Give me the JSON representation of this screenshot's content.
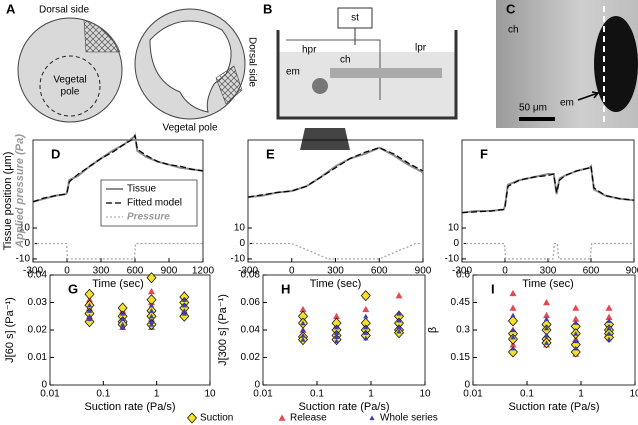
{
  "figure_panels": [
    {
      "label": "A",
      "texts": [
        "Dorsal side",
        "Vegetal",
        "pole",
        "Vegetal pole",
        "Dorsal side"
      ]
    },
    {
      "label": "B",
      "texts": [
        "st",
        "hpr",
        "lpr",
        "em",
        "ch"
      ]
    },
    {
      "label": "C",
      "texts": [
        "ch",
        "em",
        "50 μm"
      ]
    }
  ],
  "chart_data": [
    {
      "type": "line",
      "panel": "D",
      "ylabel": "Tissue position (μm)",
      "pressure_label": "Applied pressure (Pa)",
      "xlabel": "Time (sec)",
      "xlim": [
        -300,
        1200
      ],
      "xticks": [
        -300,
        0,
        300,
        600,
        900,
        1200
      ],
      "ylim": [
        -12,
        67
      ],
      "yticks": [
        -10,
        0,
        10
      ],
      "series": [
        {
          "name": "Tissue",
          "color": "#8c8c8c",
          "dash": "solid",
          "x": [
            -300,
            -200,
            -100,
            -10,
            0,
            20,
            100,
            200,
            300,
            400,
            500,
            590,
            600,
            620,
            700,
            800,
            900,
            1000,
            1100,
            1200
          ],
          "values": [
            27,
            29,
            31,
            32,
            33,
            41,
            44,
            50,
            55,
            60,
            64,
            69,
            70,
            60,
            56,
            53,
            51,
            49,
            48,
            47
          ]
        },
        {
          "name": "Fitted model",
          "color": "#000000",
          "dash": "dashed",
          "x": [
            -300,
            -200,
            -100,
            -10,
            0,
            20,
            100,
            200,
            300,
            400,
            500,
            590,
            600,
            620,
            700,
            800,
            900,
            1000,
            1100,
            1200
          ],
          "values": [
            27,
            29.5,
            31,
            32,
            33,
            40,
            45,
            50,
            55,
            59,
            64,
            68,
            70,
            61,
            57,
            53,
            51,
            50,
            48,
            47
          ]
        },
        {
          "name": "Pressure",
          "color": "#aaaaaa",
          "dash": "dotted",
          "x": [
            -300,
            -5,
            5,
            595,
            605,
            1200
          ],
          "values": [
            0,
            0,
            -10,
            -10,
            0,
            0
          ]
        }
      ]
    },
    {
      "type": "line",
      "panel": "E",
      "xlabel": "Time (sec)",
      "xlim": [
        -300,
        900
      ],
      "xticks": [
        -300,
        0,
        300,
        600,
        900
      ],
      "ylim": [
        -12,
        67
      ],
      "yticks": [
        -10,
        0,
        10
      ],
      "series": [
        {
          "color": "#8c8c8c",
          "dash": "solid",
          "x": [
            -300,
            -200,
            -100,
            0,
            100,
            200,
            300,
            400,
            500,
            600,
            700,
            800,
            900
          ],
          "values": [
            30,
            31,
            33,
            34,
            37,
            43,
            50,
            55,
            58,
            62,
            57,
            51,
            46
          ]
        },
        {
          "color": "#000000",
          "dash": "dashed",
          "x": [
            -300,
            -200,
            -100,
            0,
            100,
            200,
            300,
            400,
            500,
            600,
            700,
            800,
            900
          ],
          "values": [
            30,
            31.5,
            33,
            34,
            37,
            43,
            49,
            55,
            59,
            62,
            58,
            52,
            47
          ]
        },
        {
          "color": "#aaaaaa",
          "dash": "dotted",
          "x": [
            -300,
            0,
            250,
            600,
            850,
            900
          ],
          "values": [
            0,
            0,
            -10,
            -10,
            0,
            0
          ]
        }
      ]
    },
    {
      "type": "line",
      "panel": "F",
      "xlabel": "Time (sec)",
      "xlim": [
        -300,
        900
      ],
      "xticks": [
        -300,
        0,
        300,
        600,
        900
      ],
      "ylim": [
        -12,
        67
      ],
      "yticks": [
        -10,
        0,
        10
      ],
      "series": [
        {
          "color": "#8c8c8c",
          "dash": "solid",
          "x": [
            -300,
            -200,
            -100,
            -10,
            0,
            20,
            100,
            200,
            300,
            340,
            360,
            380,
            420,
            500,
            590,
            600,
            620,
            700,
            800,
            900
          ],
          "values": [
            20,
            21,
            21,
            22,
            24,
            38,
            41,
            43,
            45,
            45,
            32,
            42,
            44,
            47,
            49,
            50,
            35,
            31,
            29,
            28
          ]
        },
        {
          "color": "#000000",
          "dash": "dashed",
          "x": [
            -300,
            -200,
            -100,
            -10,
            0,
            20,
            100,
            200,
            300,
            340,
            360,
            380,
            420,
            500,
            590,
            600,
            620,
            700,
            800,
            900
          ],
          "values": [
            20,
            20.5,
            21,
            22,
            24,
            37,
            41,
            43,
            44,
            45,
            33,
            41,
            44,
            47,
            49,
            50,
            36,
            31,
            29,
            28
          ]
        },
        {
          "color": "#aaaaaa",
          "dash": "dotted",
          "x": [
            -300,
            -5,
            5,
            335,
            345,
            365,
            375,
            595,
            605,
            900
          ],
          "values": [
            0,
            0,
            -10,
            -10,
            0,
            0,
            -10,
            -10,
            0,
            0
          ]
        }
      ]
    },
    {
      "type": "scatter",
      "panel": "G",
      "ylabel": "J[60 s] (Pa⁻¹)",
      "xlabel": "Suction rate (Pa/s)",
      "xscale": "log",
      "xlim": [
        0.01,
        10
      ],
      "xticks": [
        0.01,
        0.1,
        1,
        10
      ],
      "ylim": [
        0,
        0.04
      ],
      "yticks": [
        0,
        0.01,
        0.02,
        0.03,
        0.04
      ],
      "series": [
        {
          "name": "Suction",
          "color": "#f5e02a",
          "marker": "diamond",
          "x": [
            0.055,
            0.055,
            0.055,
            0.055,
            0.23,
            0.23,
            0.23,
            0.23,
            0.8,
            0.8,
            0.8,
            0.8,
            0.8,
            3.3,
            3.3,
            3.3,
            3.3
          ],
          "values": [
            0.033,
            0.029,
            0.026,
            0.023,
            0.028,
            0.025,
            0.023,
            0.022,
            0.039,
            0.031,
            0.027,
            0.025,
            0.022,
            0.032,
            0.03,
            0.028,
            0.025
          ]
        },
        {
          "name": "Release",
          "color": "#e8474f",
          "marker": "triangle",
          "x": [
            0.055,
            0.055,
            0.055,
            0.055,
            0.055,
            0.23,
            0.23,
            0.23,
            0.23,
            0.23,
            0.8,
            0.8,
            0.8,
            0.8,
            0.8,
            0.8,
            3.3,
            3.3,
            3.3,
            3.3
          ],
          "values": [
            0.031,
            0.028,
            0.027,
            0.025,
            0.024,
            0.027,
            0.026,
            0.024,
            0.023,
            0.021,
            0.034,
            0.03,
            0.028,
            0.026,
            0.024,
            0.021,
            0.033,
            0.031,
            0.029,
            0.027
          ]
        },
        {
          "name": "Whole series",
          "color": "#3b3fb4",
          "marker": "small-triangle",
          "x": [
            0.055,
            0.055,
            0.055,
            0.055,
            0.23,
            0.23,
            0.23,
            0.23,
            0.8,
            0.8,
            0.8,
            0.8,
            0.8,
            3.3,
            3.3,
            3.3,
            3.3
          ],
          "values": [
            0.029,
            0.027,
            0.025,
            0.024,
            0.026,
            0.024,
            0.022,
            0.021,
            0.029,
            0.027,
            0.025,
            0.023,
            0.022,
            0.031,
            0.029,
            0.027,
            0.026
          ]
        }
      ]
    },
    {
      "type": "scatter",
      "panel": "H",
      "ylabel": "J[300 s] (Pa⁻¹)",
      "xlabel": "Suction rate (Pa/s)",
      "xscale": "log",
      "xlim": [
        0.01,
        10
      ],
      "xticks": [
        0.01,
        0.1,
        1,
        10
      ],
      "ylim": [
        0,
        0.08
      ],
      "yticks": [
        0,
        0.02,
        0.04,
        0.06,
        0.08
      ],
      "series": [
        {
          "color": "#f5e02a",
          "marker": "diamond",
          "x": [
            0.055,
            0.055,
            0.055,
            0.055,
            0.23,
            0.23,
            0.23,
            0.23,
            0.8,
            0.8,
            0.8,
            0.8,
            3.3,
            3.3,
            3.3,
            3.3
          ],
          "values": [
            0.05,
            0.045,
            0.035,
            0.033,
            0.045,
            0.04,
            0.036,
            0.033,
            0.065,
            0.045,
            0.04,
            0.036,
            0.05,
            0.045,
            0.04,
            0.038
          ]
        },
        {
          "color": "#e8474f",
          "marker": "triangle",
          "x": [
            0.055,
            0.055,
            0.055,
            0.055,
            0.23,
            0.23,
            0.23,
            0.23,
            0.8,
            0.8,
            0.8,
            0.8,
            3.3,
            3.3,
            3.3,
            3.3
          ],
          "values": [
            0.055,
            0.048,
            0.04,
            0.034,
            0.05,
            0.043,
            0.038,
            0.034,
            0.065,
            0.055,
            0.042,
            0.037,
            0.065,
            0.052,
            0.045,
            0.04
          ]
        },
        {
          "color": "#3b3fb4",
          "marker": "small-triangle",
          "x": [
            0.055,
            0.055,
            0.055,
            0.055,
            0.23,
            0.23,
            0.23,
            0.23,
            0.8,
            0.8,
            0.8,
            0.8,
            3.3,
            3.3,
            3.3,
            3.3
          ],
          "values": [
            0.045,
            0.04,
            0.036,
            0.033,
            0.042,
            0.038,
            0.035,
            0.032,
            0.05,
            0.042,
            0.038,
            0.034,
            0.052,
            0.047,
            0.042,
            0.039
          ]
        }
      ]
    },
    {
      "type": "scatter",
      "panel": "I",
      "ylabel": "β",
      "xlabel": "Suction rate (Pa/s)",
      "xscale": "log",
      "xlim": [
        0.01,
        10
      ],
      "xticks": [
        0.01,
        0.1,
        1,
        10
      ],
      "ylim": [
        0,
        0.6
      ],
      "yticks": [
        0,
        0.15,
        0.3,
        0.45,
        0.6
      ],
      "series": [
        {
          "color": "#f5e02a",
          "marker": "diamond",
          "x": [
            0.055,
            0.055,
            0.055,
            0.055,
            0.23,
            0.23,
            0.23,
            0.23,
            0.8,
            0.8,
            0.8,
            0.8,
            3.3,
            3.3,
            3.3,
            3.3
          ],
          "values": [
            0.35,
            0.28,
            0.25,
            0.18,
            0.33,
            0.3,
            0.25,
            0.23,
            0.32,
            0.28,
            0.22,
            0.18,
            0.33,
            0.3,
            0.28,
            0.26
          ]
        },
        {
          "color": "#e8474f",
          "marker": "triangle",
          "x": [
            0.055,
            0.055,
            0.055,
            0.055,
            0.055,
            0.23,
            0.23,
            0.23,
            0.23,
            0.23,
            0.8,
            0.8,
            0.8,
            0.8,
            0.8,
            3.3,
            3.3,
            3.3,
            3.3
          ],
          "values": [
            0.5,
            0.42,
            0.35,
            0.3,
            0.22,
            0.45,
            0.38,
            0.32,
            0.27,
            0.22,
            0.42,
            0.36,
            0.3,
            0.25,
            0.17,
            0.42,
            0.37,
            0.33,
            0.29
          ]
        },
        {
          "color": "#3b3fb4",
          "marker": "small-triangle",
          "x": [
            0.055,
            0.055,
            0.055,
            0.055,
            0.23,
            0.23,
            0.23,
            0.23,
            0.8,
            0.8,
            0.8,
            0.8,
            3.3,
            3.3,
            3.3,
            3.3
          ],
          "values": [
            0.38,
            0.3,
            0.26,
            0.2,
            0.36,
            0.31,
            0.27,
            0.23,
            0.34,
            0.28,
            0.24,
            0.2,
            0.35,
            0.31,
            0.28,
            0.25
          ]
        }
      ]
    }
  ]
}
